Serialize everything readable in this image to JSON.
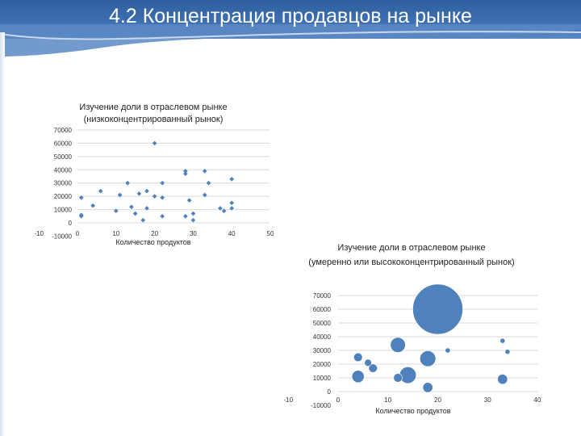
{
  "slide": {
    "title": "4.2 Концентрация продавцов на рынке"
  },
  "colors": {
    "marker": "#4f81bd",
    "bubble": "#4f81bd",
    "grid": "#d9d9d9",
    "header": "#3d6fb0"
  },
  "chart_data": [
    {
      "type": "scatter",
      "title_lines": [
        "Изучение доли в отраслевом рынке",
        "(низкоконцентрированный рынок)"
      ],
      "xlabel": "Количество продуктов",
      "ylabel": "",
      "xlim": [
        -10,
        50
      ],
      "ylim": [
        -10000,
        70000
      ],
      "x_ticks": [
        -10,
        0,
        10,
        20,
        30,
        40,
        50
      ],
      "y_ticks": [
        -10000,
        0,
        10000,
        20000,
        30000,
        40000,
        50000,
        60000,
        70000
      ],
      "grid": true,
      "points": [
        {
          "x": 1,
          "y": 19000
        },
        {
          "x": 1,
          "y": 6000
        },
        {
          "x": 1,
          "y": 5000
        },
        {
          "x": 4,
          "y": 13000
        },
        {
          "x": 6,
          "y": 24000
        },
        {
          "x": 10,
          "y": 9000
        },
        {
          "x": 11,
          "y": 21000
        },
        {
          "x": 13,
          "y": 30000
        },
        {
          "x": 14,
          "y": 12000
        },
        {
          "x": 15,
          "y": 7000
        },
        {
          "x": 16,
          "y": 22000
        },
        {
          "x": 17,
          "y": 2000
        },
        {
          "x": 18,
          "y": 24000
        },
        {
          "x": 18,
          "y": 11000
        },
        {
          "x": 20,
          "y": 60000
        },
        {
          "x": 20,
          "y": 20000
        },
        {
          "x": 22,
          "y": 30000
        },
        {
          "x": 22,
          "y": 19000
        },
        {
          "x": 22,
          "y": 5000
        },
        {
          "x": 28,
          "y": 39000
        },
        {
          "x": 28,
          "y": 37000
        },
        {
          "x": 28,
          "y": 5000
        },
        {
          "x": 29,
          "y": 17000
        },
        {
          "x": 30,
          "y": 7000
        },
        {
          "x": 30,
          "y": 2000
        },
        {
          "x": 33,
          "y": 39000
        },
        {
          "x": 33,
          "y": 21000
        },
        {
          "x": 34,
          "y": 30000
        },
        {
          "x": 37,
          "y": 11000
        },
        {
          "x": 38,
          "y": 9000
        },
        {
          "x": 40,
          "y": 33000
        },
        {
          "x": 40,
          "y": 15000
        },
        {
          "x": 40,
          "y": 11000
        }
      ]
    },
    {
      "type": "bubble",
      "title_lines": [
        "Изучение доли в отраслевом рынке",
        "(умеренно или высококонцентрированный рынок)"
      ],
      "xlabel": "Количество продуктов",
      "ylabel": "",
      "xlim": [
        -10,
        40
      ],
      "ylim": [
        -10000,
        70000
      ],
      "x_ticks": [
        -10,
        0,
        10,
        20,
        30,
        40
      ],
      "y_ticks": [
        -10000,
        0,
        10000,
        20000,
        30000,
        40000,
        50000,
        60000,
        70000
      ],
      "grid": true,
      "points": [
        {
          "x": 4,
          "y": 25000,
          "size": 3
        },
        {
          "x": 4,
          "y": 11000,
          "size": 6
        },
        {
          "x": 6,
          "y": 21000,
          "size": 2
        },
        {
          "x": 7,
          "y": 17000,
          "size": 3
        },
        {
          "x": 12,
          "y": 34000,
          "size": 9
        },
        {
          "x": 12,
          "y": 10000,
          "size": 3
        },
        {
          "x": 14,
          "y": 12000,
          "size": 11
        },
        {
          "x": 18,
          "y": 24000,
          "size": 10
        },
        {
          "x": 18,
          "y": 3000,
          "size": 4
        },
        {
          "x": 20,
          "y": 60000,
          "size": 100
        },
        {
          "x": 22,
          "y": 30000,
          "size": 1
        },
        {
          "x": 33,
          "y": 37000,
          "size": 1
        },
        {
          "x": 33,
          "y": 9000,
          "size": 4
        },
        {
          "x": 34,
          "y": 29000,
          "size": 1
        }
      ]
    }
  ]
}
